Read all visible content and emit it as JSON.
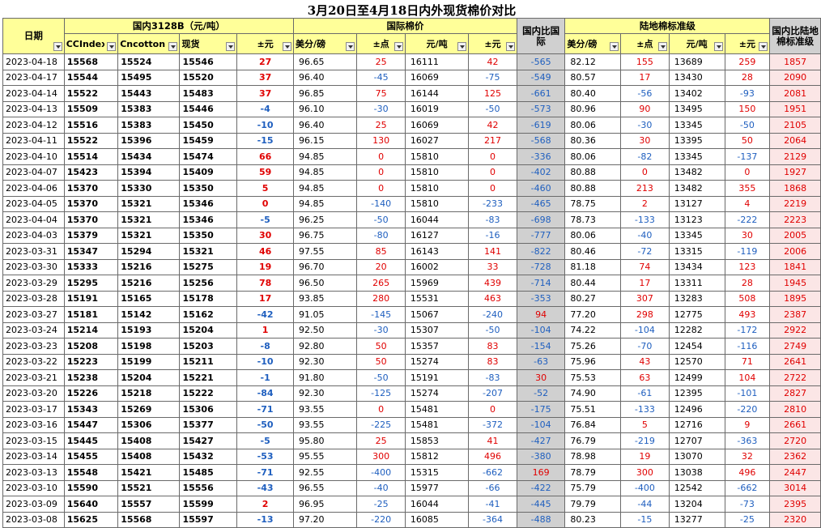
{
  "title": "3月20日至4月18日内外现货棉价对比",
  "groups": {
    "domestic": "国内3128B（元/吨）",
    "international": "国际棉价",
    "mainland": "陆地棉标准级"
  },
  "headers": {
    "date": "日期",
    "ccindex": "CCIndex",
    "cncotton": "Cncotton",
    "spot": "现货",
    "chg1": "±元",
    "usd1": "美分/磅",
    "pts1": "±点",
    "cny1": "元/吨",
    "chg2": "±元",
    "cmp1": "国内比国际",
    "usd2": "美分/磅",
    "pts2": "±点",
    "cny2": "元/吨",
    "chg3": "±元",
    "cmp2": "国内比陆地棉标准级"
  },
  "rows": [
    [
      "2023-04-18",
      "15568",
      "15524",
      "15546",
      "27",
      "96.65",
      "25",
      "16111",
      "42",
      "-565",
      "82.12",
      "155",
      "13689",
      "259",
      "1857"
    ],
    [
      "2023-04-17",
      "15544",
      "15495",
      "15520",
      "37",
      "96.40",
      "-45",
      "16069",
      "-75",
      "-549",
      "80.57",
      "17",
      "13430",
      "28",
      "2090"
    ],
    [
      "2023-04-14",
      "15522",
      "15443",
      "15483",
      "37",
      "96.85",
      "75",
      "16144",
      "125",
      "-661",
      "80.40",
      "-56",
      "13402",
      "-93",
      "2081"
    ],
    [
      "2023-04-13",
      "15509",
      "15383",
      "15446",
      "-4",
      "96.10",
      "-30",
      "16019",
      "-50",
      "-573",
      "80.96",
      "90",
      "13495",
      "150",
      "1951"
    ],
    [
      "2023-04-12",
      "15516",
      "15383",
      "15450",
      "-10",
      "96.40",
      "25",
      "16069",
      "42",
      "-619",
      "80.06",
      "-30",
      "13345",
      "-50",
      "2105"
    ],
    [
      "2023-04-11",
      "15522",
      "15396",
      "15459",
      "-15",
      "96.15",
      "130",
      "16027",
      "217",
      "-568",
      "80.36",
      "30",
      "13395",
      "50",
      "2064"
    ],
    [
      "2023-04-10",
      "15514",
      "15434",
      "15474",
      "66",
      "94.85",
      "0",
      "15810",
      "0",
      "-336",
      "80.06",
      "-82",
      "13345",
      "-137",
      "2129"
    ],
    [
      "2023-04-07",
      "15423",
      "15394",
      "15409",
      "59",
      "94.85",
      "0",
      "15810",
      "0",
      "-402",
      "80.88",
      "0",
      "13482",
      "0",
      "1927"
    ],
    [
      "2023-04-06",
      "15370",
      "15330",
      "15350",
      "5",
      "94.85",
      "0",
      "15810",
      "0",
      "-460",
      "80.88",
      "213",
      "13482",
      "355",
      "1868"
    ],
    [
      "2023-04-05",
      "15370",
      "15321",
      "15346",
      "0",
      "94.85",
      "-140",
      "15810",
      "-233",
      "-465",
      "78.75",
      "2",
      "13127",
      "4",
      "2219"
    ],
    [
      "2023-04-04",
      "15370",
      "15321",
      "15346",
      "-5",
      "96.25",
      "-50",
      "16044",
      "-83",
      "-698",
      "78.73",
      "-133",
      "13123",
      "-222",
      "2223"
    ],
    [
      "2023-04-03",
      "15379",
      "15321",
      "15350",
      "30",
      "96.75",
      "-80",
      "16127",
      "-16",
      "-777",
      "80.06",
      "-40",
      "13345",
      "30",
      "2005"
    ],
    [
      "2023-03-31",
      "15347",
      "15294",
      "15321",
      "46",
      "97.55",
      "85",
      "16143",
      "141",
      "-822",
      "80.46",
      "-72",
      "13315",
      "-119",
      "2006"
    ],
    [
      "2023-03-30",
      "15333",
      "15216",
      "15275",
      "19",
      "96.70",
      "20",
      "16002",
      "33",
      "-728",
      "81.18",
      "74",
      "13434",
      "123",
      "1841"
    ],
    [
      "2023-03-29",
      "15295",
      "15216",
      "15256",
      "78",
      "96.50",
      "265",
      "15969",
      "439",
      "-714",
      "80.44",
      "17",
      "13311",
      "28",
      "1945"
    ],
    [
      "2023-03-28",
      "15191",
      "15165",
      "15178",
      "17",
      "93.85",
      "280",
      "15531",
      "463",
      "-353",
      "80.27",
      "307",
      "13283",
      "508",
      "1895"
    ],
    [
      "2023-03-27",
      "15181",
      "15142",
      "15162",
      "-42",
      "91.05",
      "-145",
      "15067",
      "-240",
      "94",
      "77.20",
      "298",
      "12775",
      "493",
      "2387"
    ],
    [
      "2023-03-24",
      "15214",
      "15193",
      "15204",
      "1",
      "92.50",
      "-30",
      "15307",
      "-50",
      "-104",
      "74.22",
      "-104",
      "12282",
      "-172",
      "2922"
    ],
    [
      "2023-03-23",
      "15208",
      "15198",
      "15203",
      "-8",
      "92.80",
      "50",
      "15357",
      "83",
      "-154",
      "75.26",
      "-70",
      "12454",
      "-116",
      "2749"
    ],
    [
      "2023-03-22",
      "15223",
      "15199",
      "15211",
      "-10",
      "92.30",
      "50",
      "15274",
      "83",
      "-63",
      "75.96",
      "43",
      "12570",
      "71",
      "2641"
    ],
    [
      "2023-03-21",
      "15238",
      "15204",
      "15221",
      "-1",
      "91.80",
      "-50",
      "15191",
      "-83",
      "30",
      "75.53",
      "63",
      "12499",
      "104",
      "2722"
    ],
    [
      "2023-03-20",
      "15226",
      "15218",
      "15222",
      "-84",
      "92.30",
      "-125",
      "15274",
      "-207",
      "-52",
      "74.90",
      "-61",
      "12395",
      "-101",
      "2827"
    ],
    [
      "2023-03-17",
      "15343",
      "15269",
      "15306",
      "-71",
      "93.55",
      "0",
      "15481",
      "0",
      "-175",
      "75.51",
      "-133",
      "12496",
      "-220",
      "2810"
    ],
    [
      "2023-03-16",
      "15447",
      "15306",
      "15377",
      "-50",
      "93.55",
      "-225",
      "15481",
      "-372",
      "-104",
      "76.84",
      "5",
      "12716",
      "9",
      "2661"
    ],
    [
      "2023-03-15",
      "15445",
      "15408",
      "15427",
      "-5",
      "95.80",
      "25",
      "15853",
      "41",
      "-427",
      "76.79",
      "-219",
      "12707",
      "-363",
      "2720"
    ],
    [
      "2023-03-14",
      "15455",
      "15408",
      "15432",
      "-53",
      "95.55",
      "300",
      "15812",
      "496",
      "-380",
      "78.98",
      "19",
      "13070",
      "32",
      "2362"
    ],
    [
      "2023-03-13",
      "15548",
      "15421",
      "15485",
      "-71",
      "92.55",
      "-400",
      "15315",
      "-662",
      "169",
      "78.79",
      "300",
      "13038",
      "496",
      "2447"
    ],
    [
      "2023-03-10",
      "15590",
      "15521",
      "15556",
      "-43",
      "96.55",
      "-40",
      "15977",
      "-66",
      "-422",
      "75.79",
      "-400",
      "12542",
      "-662",
      "3014"
    ],
    [
      "2023-03-09",
      "15640",
      "15557",
      "15599",
      "2",
      "96.95",
      "-25",
      "16044",
      "-41",
      "-445",
      "79.79",
      "-44",
      "13204",
      "-73",
      "2395"
    ],
    [
      "2023-03-08",
      "15625",
      "15568",
      "15597",
      "-13",
      "97.20",
      "-220",
      "16085",
      "-364",
      "-488",
      "80.23",
      "-15",
      "13277",
      "-25",
      "2320"
    ]
  ],
  "colors": {
    "header_bg": "#ffff99",
    "compare_bg": "#d0d0d0",
    "positive": "#e00000",
    "negative": "#1f5fbf"
  }
}
